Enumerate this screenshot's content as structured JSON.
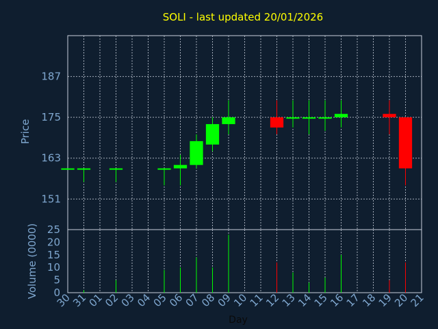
{
  "chart_data": {
    "type": "candlestick",
    "title": "SOLI - last updated 20/01/2026",
    "xlabel": "Day",
    "ylabel_price": "Price",
    "ylabel_volume": "Volume (0000)",
    "x_ticks": [
      "30",
      "31",
      "01",
      "02",
      "03",
      "04",
      "05",
      "06",
      "07",
      "08",
      "09",
      "10",
      "11",
      "12",
      "13",
      "14",
      "15",
      "16",
      "17",
      "18",
      "19",
      "20",
      "21"
    ],
    "price_ticks": [
      151,
      163,
      175,
      187
    ],
    "price_ylim": [
      142,
      199
    ],
    "volume_ticks": [
      0,
      5,
      10,
      15,
      20,
      25
    ],
    "volume_ylim": [
      0,
      25
    ],
    "grid": true,
    "colors": {
      "background": "#0f1e2f",
      "grid": "#c8d0dc",
      "up": "#00ff00",
      "down": "#ff0000",
      "title": "#ffff00",
      "axis_text": "#7fa7cf"
    },
    "candles": [
      {
        "day": "30",
        "open": 160,
        "high": 160,
        "low": 160,
        "close": 160,
        "volume": 0
      },
      {
        "day": "31",
        "open": 160,
        "high": 160,
        "low": 156,
        "close": 160,
        "volume": 1
      },
      {
        "day": "02",
        "open": 160,
        "high": 160,
        "low": 156,
        "close": 160,
        "volume": 5
      },
      {
        "day": "05",
        "open": 160,
        "high": 160,
        "low": 155,
        "close": 160,
        "volume": 9
      },
      {
        "day": "06",
        "open": 160,
        "high": 164,
        "low": 155,
        "close": 161,
        "volume": 10
      },
      {
        "day": "07",
        "open": 161,
        "high": 170,
        "low": 160,
        "close": 168,
        "volume": 14
      },
      {
        "day": "08",
        "open": 167,
        "high": 175,
        "low": 165,
        "close": 173,
        "volume": 10
      },
      {
        "day": "09",
        "open": 173,
        "high": 180,
        "low": 170,
        "close": 175,
        "volume": 23
      },
      {
        "day": "12",
        "open": 175,
        "high": 180,
        "low": 170,
        "close": 172,
        "volume": 12
      },
      {
        "day": "13",
        "open": 175,
        "high": 180,
        "low": 172,
        "close": 175,
        "volume": 8
      },
      {
        "day": "14",
        "open": 175,
        "high": 180,
        "low": 170,
        "close": 175,
        "volume": 4
      },
      {
        "day": "15",
        "open": 175,
        "high": 180,
        "low": 171,
        "close": 175,
        "volume": 6
      },
      {
        "day": "16",
        "open": 175,
        "high": 180,
        "low": 172,
        "close": 176,
        "volume": 15
      },
      {
        "day": "19",
        "open": 176,
        "high": 180,
        "low": 170,
        "close": 175,
        "volume": 5
      },
      {
        "day": "20",
        "open": 175,
        "high": 175,
        "low": 155,
        "close": 160,
        "volume": 12
      }
    ]
  }
}
